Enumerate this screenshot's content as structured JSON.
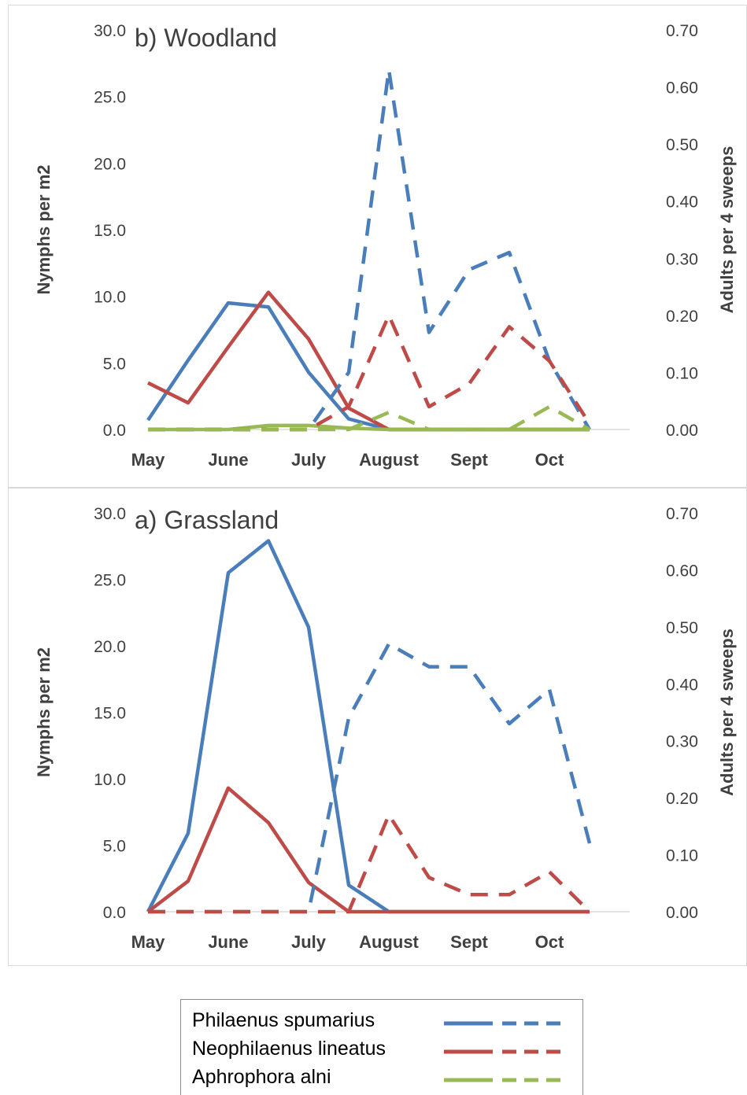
{
  "months": [
    "May",
    "June",
    "July",
    "August",
    "Sept",
    "Oct"
  ],
  "colors": {
    "philaenus": "#4a7ebb",
    "neophilaenus": "#be4b48",
    "aphrophora": "#98b954"
  },
  "legend": {
    "items": [
      {
        "label": "Philaenus spumarius",
        "color": "#4a7ebb"
      },
      {
        "label": "Neophilaenus lineatus",
        "color": "#be4b48"
      },
      {
        "label": "Aphrophora alni",
        "color": "#98b954"
      }
    ]
  },
  "chart_data": [
    {
      "type": "line",
      "title": "b) Woodland",
      "ylabel": "Nymphs per m2",
      "y2label": "Adults per 4 sweeps",
      "ylim": [
        0,
        30
      ],
      "y2lim": [
        0,
        0.7
      ],
      "yticks": [
        "0.0",
        "5.0",
        "10.0",
        "15.0",
        "20.0",
        "25.0",
        "30.0"
      ],
      "y2ticks": [
        "0.00",
        "0.10",
        "0.20",
        "0.30",
        "0.40",
        "0.50",
        "0.60",
        "0.70"
      ],
      "x": [
        0,
        0.5,
        1,
        1.5,
        2,
        2.5,
        3,
        3.5,
        4,
        4.5,
        5,
        5.5
      ],
      "series": [
        {
          "name": "Philaenus spumarius",
          "stage": "nymphs",
          "axis": "left",
          "style": "solid",
          "color": "#4a7ebb",
          "values": [
            0.7,
            5.2,
            9.5,
            9.2,
            4.3,
            0.8,
            0,
            0,
            0,
            0,
            0,
            0
          ]
        },
        {
          "name": "Neophilaenus lineatus",
          "stage": "nymphs",
          "axis": "left",
          "style": "solid",
          "color": "#be4b48",
          "values": [
            3.5,
            2.0,
            6.2,
            10.3,
            6.8,
            1.6,
            0,
            0,
            0,
            0,
            0,
            0
          ]
        },
        {
          "name": "Aphrophora alni",
          "stage": "nymphs",
          "axis": "left",
          "style": "solid",
          "color": "#98b954",
          "values": [
            0,
            0,
            0,
            0.3,
            0.3,
            0.1,
            0,
            0,
            0,
            0,
            0,
            0
          ]
        },
        {
          "name": "Philaenus spumarius",
          "stage": "adults",
          "axis": "right",
          "style": "dashed",
          "color": "#4a7ebb",
          "values": [
            0,
            0,
            0,
            0,
            0,
            0.1,
            0.63,
            0.17,
            0.28,
            0.31,
            0.12,
            0
          ]
        },
        {
          "name": "Neophilaenus lineatus",
          "stage": "adults",
          "axis": "right",
          "style": "dashed",
          "color": "#be4b48",
          "values": [
            0,
            0,
            0,
            0,
            0,
            0.04,
            0.2,
            0.04,
            0.08,
            0.18,
            0.12,
            0.01
          ]
        },
        {
          "name": "Aphrophora alni",
          "stage": "adults",
          "axis": "right",
          "style": "dashed",
          "color": "#98b954",
          "values": [
            0,
            0,
            0,
            0,
            0,
            0,
            0.03,
            0,
            0,
            0,
            0.04,
            0
          ]
        }
      ]
    },
    {
      "type": "line",
      "title": "a) Grassland",
      "ylabel": "Nymphs per m2",
      "y2label": "Adults per 4 sweeps",
      "ylim": [
        0,
        30
      ],
      "y2lim": [
        0,
        0.7
      ],
      "yticks": [
        "0.0",
        "5.0",
        "10.0",
        "15.0",
        "20.0",
        "25.0",
        "30.0"
      ],
      "y2ticks": [
        "0.00",
        "0.10",
        "0.20",
        "0.30",
        "0.40",
        "0.50",
        "0.60",
        "0.70"
      ],
      "x": [
        0,
        0.5,
        1,
        1.5,
        2,
        2.5,
        3,
        3.5,
        4,
        4.5,
        5,
        5.5
      ],
      "series": [
        {
          "name": "Philaenus spumarius",
          "stage": "nymphs",
          "axis": "left",
          "style": "solid",
          "color": "#4a7ebb",
          "values": [
            0,
            5.9,
            25.5,
            27.9,
            21.4,
            2.0,
            0,
            0,
            0,
            0,
            0,
            0
          ]
        },
        {
          "name": "Neophilaenus lineatus",
          "stage": "nymphs",
          "axis": "left",
          "style": "solid",
          "color": "#be4b48",
          "values": [
            0,
            2.3,
            9.3,
            6.7,
            2.2,
            0,
            0,
            0,
            0,
            0,
            0,
            0
          ]
        },
        {
          "name": "Philaenus spumarius",
          "stage": "adults",
          "axis": "right",
          "style": "dashed",
          "color": "#4a7ebb",
          "values": [
            0,
            0,
            0,
            0,
            0,
            0.34,
            0.47,
            0.43,
            0.43,
            0.33,
            0.39,
            0.12
          ]
        },
        {
          "name": "Neophilaenus lineatus",
          "stage": "adults",
          "axis": "right",
          "style": "dashed",
          "color": "#be4b48",
          "values": [
            0,
            0,
            0,
            0,
            0,
            0,
            0.17,
            0.06,
            0.03,
            0.03,
            0.07,
            0
          ]
        }
      ]
    }
  ]
}
